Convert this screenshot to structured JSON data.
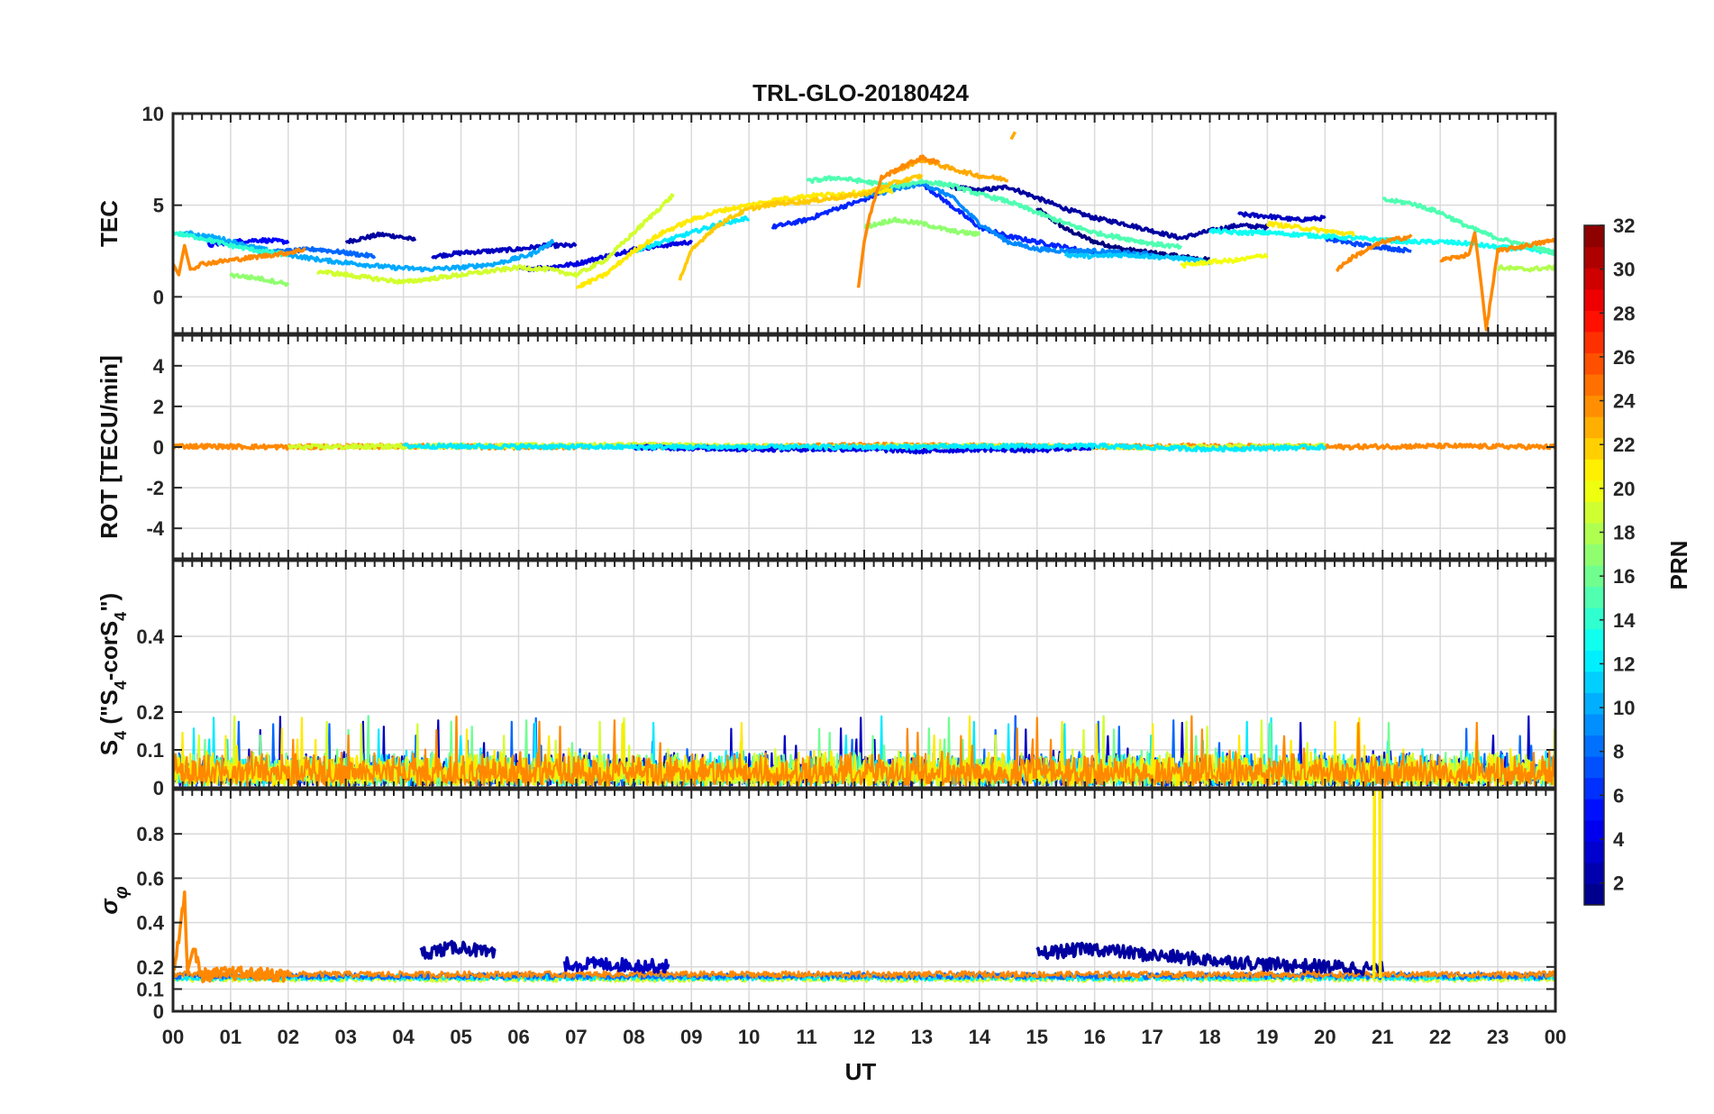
{
  "chart_data": {
    "type": "line",
    "title": "TRL-GLO-20180424",
    "xlabel": "UT",
    "x_tick_labels": [
      "00",
      "01",
      "02",
      "03",
      "04",
      "05",
      "06",
      "07",
      "08",
      "09",
      "10",
      "11",
      "12",
      "13",
      "14",
      "15",
      "16",
      "17",
      "18",
      "19",
      "20",
      "21",
      "22",
      "23",
      "00"
    ],
    "xlim": [
      0,
      24
    ],
    "colorbar": {
      "label": "PRN",
      "range": [
        1,
        32
      ],
      "tick_labels": [
        "2",
        "4",
        "6",
        "8",
        "10",
        "12",
        "14",
        "16",
        "18",
        "20",
        "22",
        "24",
        "26",
        "28",
        "30",
        "32"
      ],
      "colormap": "jet"
    },
    "panels": [
      {
        "name": "tec",
        "ylabel": "TEC",
        "ylim": [
          -2,
          10
        ],
        "y_tick_labels": [
          "0",
          "5",
          "10"
        ],
        "series": [
          {
            "prn": 1,
            "x": [
              15.0,
              15.5,
              16.0,
              16.5,
              17.0,
              17.5,
              18.0
            ],
            "y": [
              4.8,
              3.7,
              3.0,
              2.6,
              2.4,
              2.2,
              2.0
            ]
          },
          {
            "prn": 2,
            "x": [
              3.0,
              3.3,
              3.6,
              3.9,
              4.2
            ],
            "y": [
              3.0,
              3.2,
              3.4,
              3.3,
              3.1
            ]
          },
          {
            "prn": 2,
            "x": [
              13.5,
              14.0,
              14.5,
              15.0,
              15.5,
              16.0,
              16.5,
              17.0,
              17.5,
              18.0,
              18.5,
              19.0
            ],
            "y": [
              6.0,
              5.8,
              6.0,
              5.4,
              4.8,
              4.3,
              4.0,
              3.6,
              3.2,
              3.6,
              3.9,
              3.8
            ]
          },
          {
            "prn": 3,
            "x": [
              4.5,
              5.0,
              5.5,
              6.0,
              6.5,
              7.0
            ],
            "y": [
              2.2,
              2.4,
              2.5,
              2.6,
              2.8,
              2.8
            ]
          },
          {
            "prn": 3,
            "x": [
              18.5,
              19.0,
              19.5,
              20.0
            ],
            "y": [
              4.5,
              4.4,
              4.2,
              4.3
            ]
          },
          {
            "prn": 4,
            "x": [
              6.0,
              6.5,
              7.0,
              7.5,
              8.0,
              8.5,
              9.0
            ],
            "y": [
              1.5,
              1.6,
              1.8,
              2.2,
              2.6,
              2.8,
              3.0
            ]
          },
          {
            "prn": 5,
            "x": [
              0.6,
              1.0,
              1.5,
              2.0
            ],
            "y": [
              2.8,
              3.0,
              3.1,
              3.0
            ]
          },
          {
            "prn": 6,
            "x": [
              10.4,
              11.0,
              11.5,
              12.0,
              12.5,
              13.0,
              13.5,
              14.0,
              14.5,
              15.0,
              15.5,
              16.0
            ],
            "y": [
              3.8,
              4.2,
              4.8,
              5.3,
              6.0,
              6.2,
              5.0,
              3.8,
              3.3,
              3.0,
              2.7,
              2.4
            ]
          },
          {
            "prn": 7,
            "x": [
              20.0,
              20.5,
              21.0,
              21.5
            ],
            "y": [
              3.2,
              2.9,
              2.7,
              2.5
            ]
          },
          {
            "prn": 8,
            "x": [
              1.5,
              2.0,
              2.5,
              3.0,
              3.5
            ],
            "y": [
              2.4,
              2.5,
              2.6,
              2.4,
              2.2
            ]
          },
          {
            "prn": 9,
            "x": [
              12.0,
              12.5,
              13.0,
              13.5,
              14.0,
              14.5,
              15.0,
              15.5,
              16.0,
              16.5,
              17.0
            ],
            "y": [
              5.5,
              5.8,
              6.2,
              5.5,
              4.0,
              3.0,
              2.6,
              2.5,
              2.5,
              2.4,
              2.3
            ]
          },
          {
            "prn": 10,
            "x": [
              0.2,
              0.8,
              1.4,
              2.0,
              2.6,
              3.2,
              3.8,
              4.4,
              5.0,
              5.6,
              6.2,
              6.6
            ],
            "y": [
              3.5,
              3.2,
              2.7,
              2.3,
              2.0,
              1.8,
              1.6,
              1.5,
              1.6,
              1.8,
              2.3,
              3.0
            ]
          },
          {
            "prn": 11,
            "x": [
              15.5,
              16.0,
              16.5,
              17.0,
              17.5,
              18.0
            ],
            "y": [
              2.3,
              2.2,
              2.3,
              2.2,
              2.1,
              1.9
            ]
          },
          {
            "prn": 12,
            "x": [
              8.0,
              8.5,
              9.0,
              9.5,
              10.0
            ],
            "y": [
              2.5,
              3.0,
              3.5,
              4.0,
              4.3
            ]
          },
          {
            "prn": 13,
            "x": [
              18.0,
              18.5,
              19.0,
              19.5,
              20.0,
              20.5,
              21.0,
              21.5,
              22.0,
              22.5,
              23.0,
              23.5,
              24.0
            ],
            "y": [
              3.6,
              3.5,
              3.5,
              3.4,
              3.3,
              3.2,
              3.1,
              3.0,
              3.0,
              2.9,
              2.7,
              2.6,
              2.4
            ]
          },
          {
            "prn": 14,
            "x": [
              0.0,
              0.5,
              1.0,
              1.5,
              2.0
            ],
            "y": [
              3.5,
              3.2,
              2.8,
              2.5,
              2.3
            ]
          },
          {
            "prn": 15,
            "x": [
              11.0,
              11.5,
              12.0,
              12.5,
              13.0,
              13.5,
              14.0,
              14.5,
              15.0,
              15.5,
              16.0,
              16.5,
              17.0,
              17.5
            ],
            "y": [
              6.3,
              6.5,
              6.3,
              6.0,
              6.3,
              6.1,
              5.6,
              5.2,
              4.6,
              4.0,
              3.5,
              3.2,
              2.9,
              2.7
            ]
          },
          {
            "prn": 15,
            "x": [
              21.0,
              21.5,
              22.0,
              22.5,
              23.0,
              23.5,
              24.0
            ],
            "y": [
              5.3,
              5.1,
              4.6,
              3.8,
              3.2,
              2.8,
              2.4
            ]
          },
          {
            "prn": 17,
            "x": [
              12.0,
              12.5,
              13.0,
              13.5,
              14.0
            ],
            "y": [
              3.8,
              4.2,
              4.0,
              3.6,
              3.4
            ]
          },
          {
            "prn": 17,
            "x": [
              1.0,
              1.5,
              2.0
            ],
            "y": [
              1.2,
              1.0,
              0.7
            ]
          },
          {
            "prn": 18,
            "x": [
              23.0,
              23.5,
              24.0
            ],
            "y": [
              1.6,
              1.5,
              1.6
            ]
          },
          {
            "prn": 19,
            "x": [
              2.5,
              3.0,
              3.5,
              4.0,
              4.5,
              5.0,
              5.5,
              6.0,
              6.5,
              7.0,
              7.5,
              8.0,
              8.7
            ],
            "y": [
              1.4,
              1.2,
              1.0,
              0.8,
              1.0,
              1.2,
              1.4,
              1.6,
              1.5,
              1.2,
              2.0,
              3.5,
              5.6
            ]
          },
          {
            "prn": 20,
            "x": [
              17.5,
              18.0,
              18.5,
              19.0
            ],
            "y": [
              1.7,
              1.9,
              2.0,
              2.3
            ]
          },
          {
            "prn": 21,
            "x": [
              7.0,
              7.5,
              8.0,
              8.5,
              9.0,
              9.5,
              10.0,
              10.5,
              11.0,
              11.5,
              12.0,
              12.5
            ],
            "y": [
              0.5,
              1.2,
              2.5,
              3.5,
              4.2,
              4.7,
              5.0,
              5.3,
              5.5,
              5.6,
              5.7,
              5.8
            ]
          },
          {
            "prn": 21,
            "x": [
              19.0,
              19.5,
              20.0,
              20.5
            ],
            "y": [
              4.0,
              3.8,
              3.6,
              3.4
            ]
          },
          {
            "prn": 22,
            "x": [
              8.8,
              9.0,
              9.3,
              9.6,
              10.0,
              10.5,
              11.0,
              11.5,
              12.0,
              12.5,
              13.0
            ],
            "y": [
              1.0,
              2.5,
              3.5,
              4.2,
              4.8,
              5.1,
              5.2,
              5.4,
              5.6,
              6.2,
              6.6
            ]
          },
          {
            "prn": 23,
            "x": [
              12.5,
              13.0,
              13.5,
              14.0,
              14.5
            ],
            "y": [
              6.8,
              7.5,
              7.0,
              6.6,
              6.4
            ]
          },
          {
            "prn": 23,
            "x": [
              14.55,
              14.62
            ],
            "y": [
              8.6,
              9.0
            ]
          },
          {
            "prn": 24,
            "x": [
              0.0,
              0.1,
              0.2,
              0.3,
              0.5,
              1.0,
              1.5,
              2.0,
              2.3
            ],
            "y": [
              1.8,
              1.2,
              2.8,
              1.5,
              1.8,
              2.0,
              2.2,
              2.4,
              2.6
            ]
          },
          {
            "prn": 24,
            "x": [
              11.9,
              12.0,
              12.1,
              12.3,
              12.6,
              13.0,
              13.3
            ],
            "y": [
              0.5,
              3.0,
              4.5,
              6.5,
              7.0,
              7.6,
              7.3
            ]
          },
          {
            "prn": 24,
            "x": [
              20.2,
              20.5,
              21.0,
              21.5
            ],
            "y": [
              1.5,
              2.2,
              3.0,
              3.3
            ]
          },
          {
            "prn": 24,
            "x": [
              22.0,
              22.5,
              22.6,
              22.7,
              22.8,
              23.0,
              23.5,
              24.0
            ],
            "y": [
              2.0,
              2.3,
              3.5,
              1.0,
              -1.8,
              2.5,
              2.8,
              3.1
            ]
          }
        ]
      },
      {
        "name": "rot",
        "ylabel": "ROT [TECU/min]",
        "ylim": [
          -5.5,
          5.5
        ],
        "y_tick_labels": [
          "-4",
          "-2",
          "0",
          "2",
          "4"
        ],
        "series": [
          {
            "prn": 24,
            "x": [
              0,
              2,
              4,
              6,
              8,
              10,
              12,
              14,
              16,
              18,
              20,
              22,
              24
            ],
            "y": [
              0.05,
              0.0,
              0.05,
              0.0,
              0.05,
              0.0,
              0.1,
              0.05,
              0.0,
              0.05,
              0.0,
              0.05,
              0.0
            ]
          },
          {
            "prn": 19,
            "x": [
              2,
              5,
              8,
              11,
              14,
              17,
              20
            ],
            "y": [
              0.0,
              0.05,
              0.1,
              0.0,
              0.05,
              0.0,
              0.05
            ]
          },
          {
            "prn": 4,
            "x": [
              8,
              10,
              12,
              13,
              14,
              15,
              16
            ],
            "y": [
              0.0,
              -0.1,
              -0.1,
              -0.2,
              -0.1,
              -0.15,
              0.0
            ]
          },
          {
            "prn": 12,
            "x": [
              4,
              8,
              12,
              16,
              18,
              20
            ],
            "y": [
              0.05,
              0.0,
              0.0,
              0.05,
              -0.1,
              0.0
            ]
          }
        ]
      },
      {
        "name": "s4",
        "ylabel": "S4 (\"S4-corS4\")",
        "ylim": [
          0,
          0.6
        ],
        "y_tick_labels": [
          "0",
          "0.1",
          "0.2",
          "0.4"
        ],
        "noise_range": [
          0.02,
          0.1
        ],
        "spike_max": 0.19,
        "series_prns": [
          3,
          8,
          12,
          16,
          19,
          21,
          24
        ]
      },
      {
        "name": "sigma",
        "ylabel": "σφ",
        "ylim": [
          0,
          1
        ],
        "y_tick_labels": [
          "0",
          "0.1",
          "0.2",
          "0.4",
          "0.6",
          "0.8"
        ],
        "baseline_range": [
          0.12,
          0.2
        ],
        "series": [
          {
            "prn": 2,
            "x": [
              4.3,
              5.0,
              5.6
            ],
            "y": [
              0.25,
              0.28,
              0.24
            ]
          },
          {
            "prn": 2,
            "x": [
              15.0,
              16.0,
              17.0,
              18.0,
              19.0,
              20.0,
              21.0
            ],
            "y": [
              0.25,
              0.27,
              0.24,
              0.22,
              0.2,
              0.19,
              0.18
            ]
          },
          {
            "prn": 3,
            "x": [
              6.8,
              7.5,
              8.6
            ],
            "y": [
              0.2,
              0.2,
              0.19
            ]
          },
          {
            "prn": 24,
            "x": [
              0.0,
              0.2,
              0.25,
              0.35,
              0.5,
              1.0,
              2.0
            ],
            "y": [
              0.15,
              0.5,
              0.18,
              0.28,
              0.15,
              0.16,
              0.15
            ]
          },
          {
            "prn": 21,
            "x": [
              20.85,
              20.86,
              20.95,
              20.96
            ],
            "y": [
              0.15,
              1.0,
              1.0,
              0.15
            ]
          }
        ]
      }
    ]
  }
}
